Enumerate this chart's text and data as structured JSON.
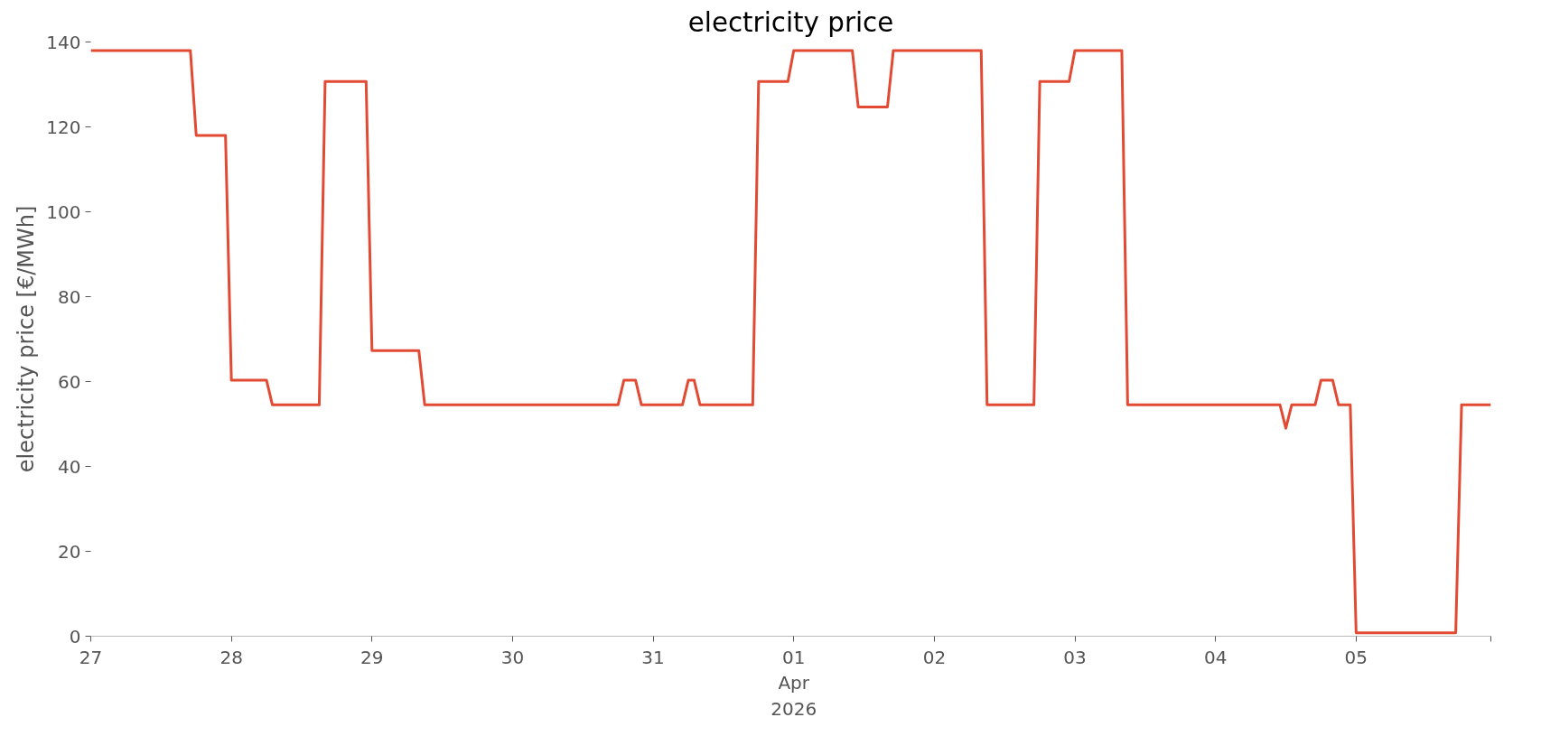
{
  "chart_data": {
    "type": "line",
    "title": "electricity price",
    "ylabel": "electricity price [€/MWh]",
    "x": [
      "2026-03-27T00:00",
      "2026-03-27T17:00",
      "2026-03-27T18:00",
      "2026-03-27T23:00",
      "2026-03-28T00:00",
      "2026-03-28T06:00",
      "2026-03-28T07:00",
      "2026-03-28T15:00",
      "2026-03-28T16:00",
      "2026-03-28T23:00",
      "2026-03-29T00:00",
      "2026-03-29T08:00",
      "2026-03-29T09:00",
      "2026-03-30T18:00",
      "2026-03-30T19:00",
      "2026-03-30T21:00",
      "2026-03-30T22:00",
      "2026-03-31T05:00",
      "2026-03-31T06:00",
      "2026-03-31T07:00",
      "2026-03-31T08:00",
      "2026-03-31T17:00",
      "2026-03-31T18:00",
      "2026-03-31T23:00",
      "2026-04-01T00:00",
      "2026-04-01T10:00",
      "2026-04-01T11:00",
      "2026-04-01T16:00",
      "2026-04-01T17:00",
      "2026-04-02T08:00",
      "2026-04-02T09:00",
      "2026-04-02T17:00",
      "2026-04-02T18:00",
      "2026-04-02T23:00",
      "2026-04-03T00:00",
      "2026-04-03T08:00",
      "2026-04-03T09:00",
      "2026-04-04T11:00",
      "2026-04-04T12:00",
      "2026-04-04T13:00",
      "2026-04-04T17:00",
      "2026-04-04T18:00",
      "2026-04-04T20:00",
      "2026-04-04T21:00",
      "2026-04-04T23:00",
      "2026-04-05T00:00",
      "2026-04-05T17:00",
      "2026-04-05T18:00",
      "2026-04-05T23:00"
    ],
    "series": [
      {
        "color": "#e24a33",
        "values": [
          138,
          138,
          118,
          118,
          60.3,
          60.3,
          54.5,
          54.5,
          130.7,
          130.7,
          67.3,
          67.3,
          54.5,
          54.5,
          60.3,
          60.3,
          54.5,
          54.5,
          60.3,
          60.3,
          54.5,
          54.5,
          130.7,
          130.7,
          138,
          138,
          124.7,
          124.7,
          138,
          138,
          54.5,
          54.5,
          130.7,
          130.7,
          138,
          138,
          54.5,
          54.5,
          49,
          54.5,
          54.5,
          60.3,
          60.3,
          54.5,
          54.5,
          0.8,
          0.8,
          54.5,
          54.5
        ]
      }
    ],
    "xlim": [
      "2026-03-27T00:00",
      "2026-04-05T23:00"
    ],
    "xticks": [
      {
        "value": "2026-03-27",
        "label": "27"
      },
      {
        "value": "2026-03-28",
        "label": "28"
      },
      {
        "value": "2026-03-29",
        "label": "29"
      },
      {
        "value": "2026-03-30",
        "label": "30"
      },
      {
        "value": "2026-03-31",
        "label": "31"
      },
      {
        "value": "2026-04-01",
        "label": "01\nApr\n2026"
      },
      {
        "value": "2026-04-02",
        "label": "02"
      },
      {
        "value": "2026-04-03",
        "label": "03"
      },
      {
        "value": "2026-04-04",
        "label": "04"
      },
      {
        "value": "2026-04-05",
        "label": "05"
      },
      {
        "value": "2026-04-05T23:00",
        "label": null
      }
    ],
    "ylim": [
      0,
      140
    ],
    "yticks": [
      0,
      20,
      40,
      60,
      80,
      100,
      120,
      140
    ],
    "grid": false,
    "marker": "none",
    "line_style": "solid"
  }
}
